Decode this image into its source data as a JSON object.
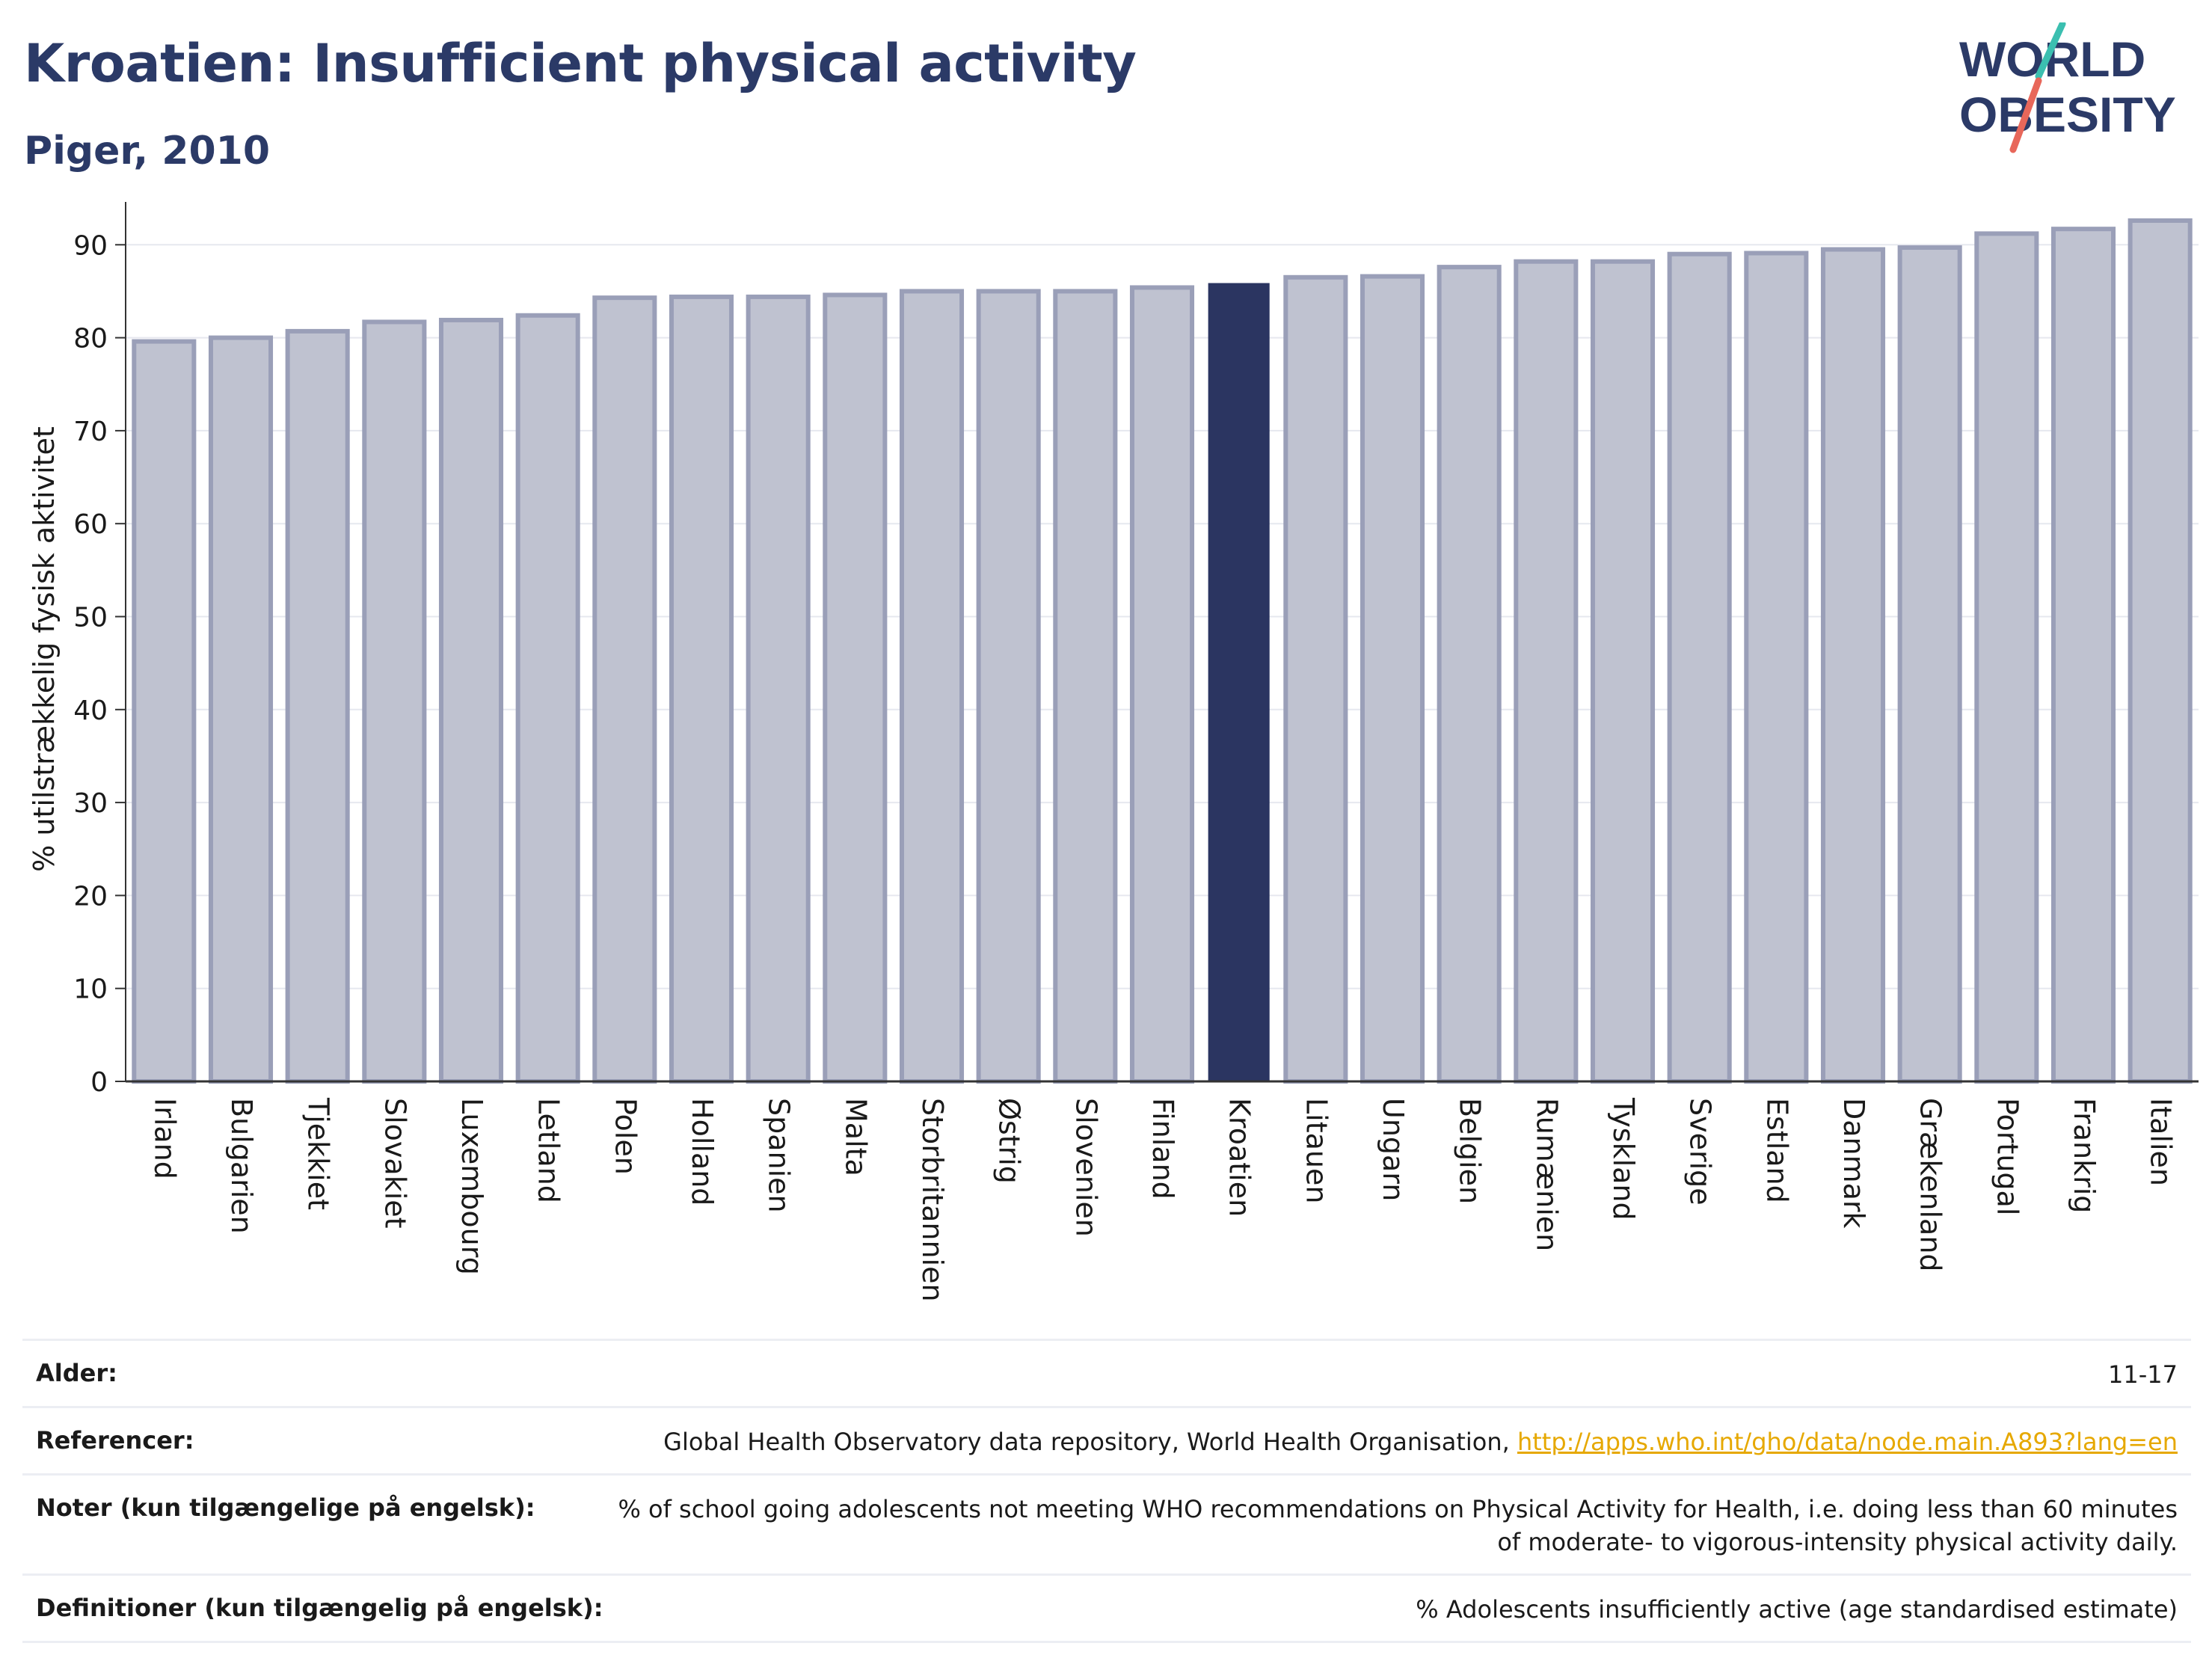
{
  "header": {
    "title": "Kroatien: Insufficient physical activity",
    "subtitle": "Piger, 2010"
  },
  "logo": {
    "line1": "WORLD",
    "line2": "OBESITY",
    "colors": {
      "text": "#2b3a67",
      "slash_teal": "#3bbfb0",
      "slash_coral": "#e8675a"
    }
  },
  "chart_data": {
    "type": "bar",
    "ylabel": "% utilstrækkelig fysisk aktivitet",
    "xlabel": "",
    "ylim": [
      0,
      93
    ],
    "yticks": [
      0,
      10,
      20,
      30,
      40,
      50,
      60,
      70,
      80,
      90
    ],
    "grid": true,
    "highlight": "Kroatien",
    "colors": {
      "bar": "#bfc2d0",
      "bar_edge": "#9a9fb8",
      "highlight": "#2b3561",
      "grid": "#e6e8ef",
      "axis": "#333333"
    },
    "categories": [
      "Irland",
      "Bulgarien",
      "Tjekkiet",
      "Slovakiet",
      "Luxembourg",
      "Letland",
      "Polen",
      "Holland",
      "Spanien",
      "Malta",
      "Storbritannien",
      "Østrig",
      "Slovenien",
      "Finland",
      "Kroatien",
      "Litauen",
      "Ungarn",
      "Belgien",
      "Rumænien",
      "Tyskland",
      "Sverige",
      "Estland",
      "Danmark",
      "Grækenland",
      "Portugal",
      "Frankrig",
      "Italien"
    ],
    "values": [
      79.6,
      80.0,
      80.7,
      81.7,
      81.9,
      82.4,
      84.3,
      84.4,
      84.4,
      84.6,
      85.0,
      85.0,
      85.0,
      85.4,
      85.8,
      86.5,
      86.6,
      87.6,
      88.2,
      88.2,
      89.0,
      89.1,
      89.5,
      89.7,
      91.2,
      91.7,
      92.6
    ]
  },
  "meta": {
    "age_label": "Alder:",
    "age_value": "11-17",
    "ref_label": "Referencer:",
    "ref_text": "Global Health Observatory data repository, World Health Organisation,",
    "ref_link": "http://apps.who.int/gho/data/node.main.A893?lang=en",
    "notes_label": "Noter (kun tilgængelige på engelsk):",
    "notes_value": "% of school going adolescents not meeting WHO recommendations on Physical Activity for Health, i.e. doing less than 60 minutes of moderate- to vigorous-intensity physical activity daily.",
    "def_label": "Definitioner (kun tilgængelig på engelsk):",
    "def_value": "% Adolescents insufficiently active (age standardised estimate)"
  }
}
